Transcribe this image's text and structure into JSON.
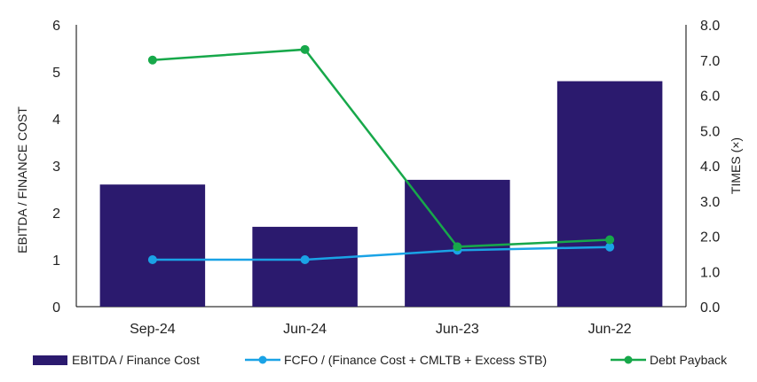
{
  "chart_data": {
    "type": "bar",
    "categories": [
      "Sep-24",
      "Jun-24",
      "Jun-23",
      "Jun-22"
    ],
    "series": [
      {
        "name": "EBITDA / Finance Cost",
        "type": "bar",
        "axis": "left",
        "values": [
          2.6,
          1.7,
          2.7,
          4.8
        ],
        "color": "#2b1a6e"
      },
      {
        "name": "FCFO / (Finance Cost + CMLTB + Excess STB)",
        "type": "line",
        "axis": "left",
        "values": [
          1.0,
          1.0,
          1.2,
          1.27
        ],
        "color": "#1aa3e6"
      },
      {
        "name": "Debt Payback",
        "type": "line",
        "axis": "right",
        "values": [
          7.0,
          7.3,
          1.7,
          1.9
        ],
        "color": "#17a84a"
      }
    ],
    "ylabel": "EBITDA / FINANCE COST",
    "y2label": "TIMES (×)",
    "ylim": [
      0,
      6
    ],
    "y2lim": [
      0,
      8
    ],
    "yticks": [
      "0",
      "1",
      "2",
      "3",
      "4",
      "5",
      "6"
    ],
    "y2ticks": [
      "0.0",
      "1.0",
      "2.0",
      "3.0",
      "4.0",
      "5.0",
      "6.0",
      "7.0",
      "8.0"
    ],
    "grid": false,
    "legend": "bottom"
  }
}
